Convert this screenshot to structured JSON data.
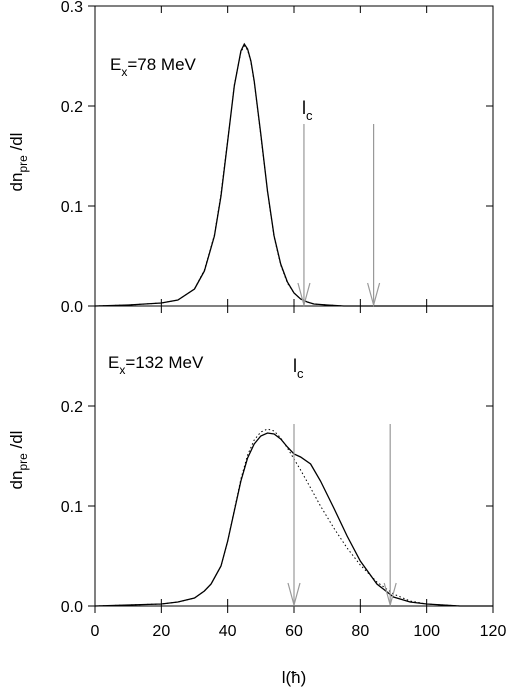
{
  "chart_data": [
    {
      "type": "line",
      "annotation": {
        "main": "E",
        "sub": "x",
        "rest": "=78 MeV"
      },
      "lc_label": {
        "main": "l",
        "sub": "c"
      },
      "ylabel": {
        "main": "dn",
        "sub": "pre",
        "rest": " /dl"
      },
      "xlim": [
        0,
        120
      ],
      "ylim": [
        0,
        0.3
      ],
      "yticks": [
        0.0,
        0.1,
        0.2,
        0.3
      ],
      "ytick_labels": [
        "0.0",
        "0.1",
        "0.2",
        "0.3"
      ],
      "arrows": [
        63,
        84
      ],
      "series": [
        {
          "style": "solid",
          "x": [
            0,
            10,
            20,
            25,
            30,
            33,
            36,
            38,
            40,
            42,
            44,
            45,
            46,
            47,
            48,
            50,
            52,
            54,
            56,
            58,
            60,
            62,
            64,
            66,
            70,
            75,
            80,
            90,
            100,
            110,
            120
          ],
          "y": [
            0,
            0.001,
            0.003,
            0.006,
            0.017,
            0.035,
            0.07,
            0.11,
            0.165,
            0.22,
            0.255,
            0.262,
            0.257,
            0.245,
            0.225,
            0.172,
            0.115,
            0.07,
            0.042,
            0.024,
            0.013,
            0.007,
            0.004,
            0.002,
            0.001,
            0,
            0,
            0,
            0,
            0,
            0
          ]
        },
        {
          "style": "dotted",
          "x": [
            0,
            10,
            20,
            25,
            30,
            33,
            36,
            38,
            40,
            42,
            44,
            45,
            46,
            47,
            48,
            50,
            52,
            54,
            56,
            58,
            60,
            62,
            64,
            66,
            70,
            75,
            80,
            90,
            100,
            110,
            120
          ],
          "y": [
            0,
            0.001,
            0.003,
            0.006,
            0.017,
            0.036,
            0.071,
            0.112,
            0.166,
            0.221,
            0.254,
            0.26,
            0.256,
            0.244,
            0.224,
            0.171,
            0.114,
            0.069,
            0.041,
            0.023,
            0.013,
            0.007,
            0.004,
            0.002,
            0.001,
            0,
            0,
            0,
            0,
            0,
            0
          ]
        }
      ]
    },
    {
      "type": "line",
      "annotation": {
        "main": "E",
        "sub": "x",
        "rest": "=132 MeV"
      },
      "lc_label": {
        "main": "l",
        "sub": "c"
      },
      "ylabel": {
        "main": "dn",
        "sub": "pre",
        "rest": " /dl"
      },
      "xlabel": "l(ħ)",
      "xlim": [
        0,
        120
      ],
      "ylim": [
        0,
        0.3
      ],
      "yticks": [
        0.0,
        0.1,
        0.2
      ],
      "ytick_labels": [
        "0.0",
        "0.1",
        "0.2"
      ],
      "xticks": [
        0,
        20,
        40,
        60,
        80,
        100,
        120
      ],
      "xtick_labels": [
        "0",
        "20",
        "40",
        "60",
        "80",
        "100",
        "120"
      ],
      "arrows": [
        60,
        89
      ],
      "series": [
        {
          "style": "solid",
          "x": [
            0,
            10,
            20,
            25,
            30,
            33,
            35,
            38,
            40,
            42,
            44,
            46,
            48,
            50,
            52,
            54,
            56,
            58,
            60,
            62,
            65,
            68,
            72,
            76,
            80,
            85,
            90,
            95,
            100,
            105,
            110,
            120
          ],
          "y": [
            0,
            0.001,
            0.002,
            0.004,
            0.008,
            0.015,
            0.022,
            0.04,
            0.065,
            0.095,
            0.125,
            0.148,
            0.162,
            0.17,
            0.173,
            0.172,
            0.167,
            0.159,
            0.152,
            0.149,
            0.142,
            0.125,
            0.098,
            0.07,
            0.045,
            0.022,
            0.009,
            0.004,
            0.002,
            0.001,
            0,
            0
          ]
        },
        {
          "style": "dotted",
          "x": [
            0,
            10,
            20,
            25,
            30,
            33,
            35,
            38,
            40,
            42,
            44,
            46,
            48,
            50,
            52,
            54,
            56,
            58,
            60,
            62,
            65,
            68,
            72,
            76,
            80,
            85,
            90,
            95,
            100,
            105,
            110,
            120
          ],
          "y": [
            0,
            0.001,
            0.002,
            0.004,
            0.008,
            0.015,
            0.022,
            0.04,
            0.065,
            0.096,
            0.127,
            0.151,
            0.166,
            0.174,
            0.177,
            0.175,
            0.168,
            0.158,
            0.147,
            0.136,
            0.118,
            0.1,
            0.078,
            0.058,
            0.041,
            0.024,
            0.012,
            0.005,
            0.002,
            0.001,
            0,
            0
          ]
        }
      ]
    }
  ]
}
